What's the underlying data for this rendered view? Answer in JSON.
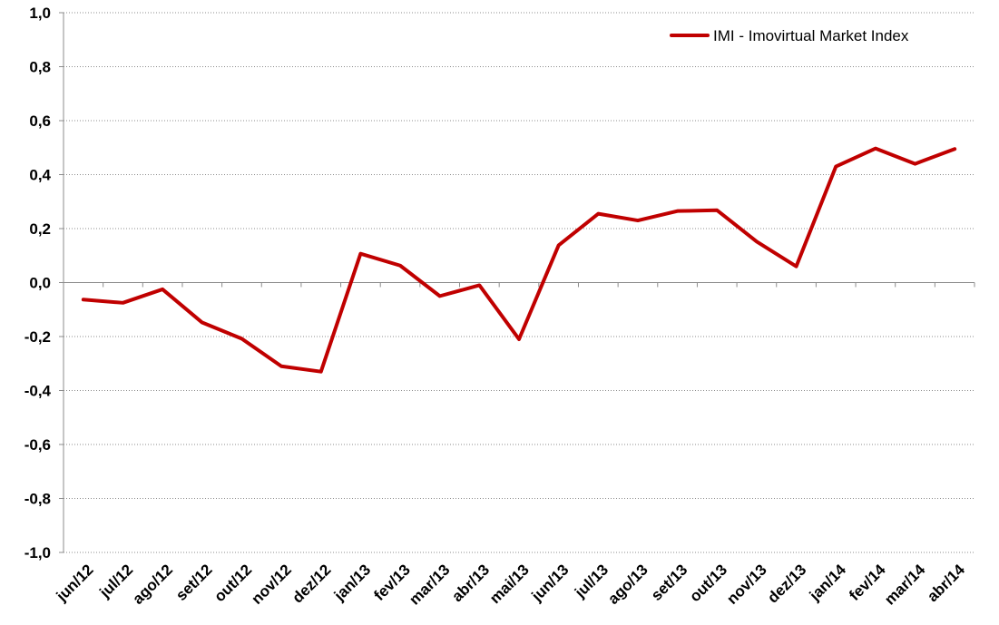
{
  "chart_data": {
    "type": "line",
    "title": "",
    "xlabel": "",
    "ylabel": "",
    "ylim": [
      -1.0,
      1.0
    ],
    "yticks": [
      1.0,
      0.8,
      0.6,
      0.4,
      0.2,
      0.0,
      -0.2,
      -0.4,
      -0.6,
      -0.8,
      -1.0
    ],
    "ytick_labels": [
      "1,0",
      "0,8",
      "0,6",
      "0,4",
      "0,2",
      "0,0",
      "-0,2",
      "-0,4",
      "-0,6",
      "-0,8",
      "-1,0"
    ],
    "grid": true,
    "legend_position": "top-right",
    "categories": [
      "jun/12",
      "jul/12",
      "ago/12",
      "set/12",
      "out/12",
      "nov/12",
      "dez/12",
      "jan/13",
      "fev/13",
      "mar/13",
      "abr/13",
      "mai/13",
      "jun/13",
      "jul/13",
      "ago/13",
      "set/13",
      "out/13",
      "nov/13",
      "dez/13",
      "jan/14",
      "fev/14",
      "mar/14",
      "abr/14"
    ],
    "series": [
      {
        "name": "IMI - Imovirtual Market Index",
        "color": "#c00000",
        "values": [
          -0.063,
          -0.075,
          -0.025,
          -0.148,
          -0.208,
          -0.31,
          -0.33,
          0.107,
          0.063,
          -0.05,
          -0.01,
          -0.21,
          0.138,
          0.255,
          0.23,
          0.265,
          0.268,
          0.152,
          0.06,
          0.43,
          0.497,
          0.44,
          0.495
        ]
      }
    ]
  }
}
